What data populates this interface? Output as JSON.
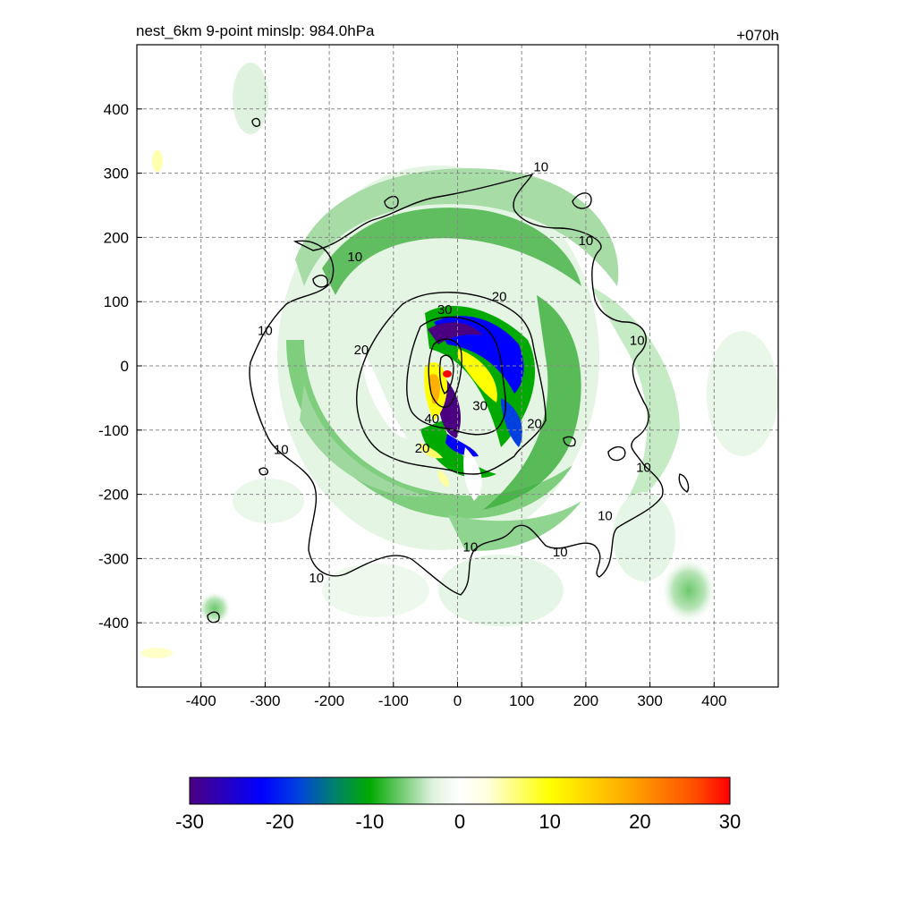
{
  "chart_data": {
    "type": "heatmap",
    "title": "nest_6km  9-point minslp: 984.0hPa",
    "time_label": "+070h",
    "xlim": [
      -500,
      500
    ],
    "ylim": [
      -500,
      500
    ],
    "grid": true,
    "x_ticks": [
      -400,
      -300,
      -200,
      -100,
      0,
      100,
      200,
      300,
      400
    ],
    "x_tick_labels": [
      "-400",
      "-300",
      "-200",
      "-100",
      "0",
      "100",
      "200",
      "300",
      "400"
    ],
    "y_ticks": [
      400,
      300,
      200,
      100,
      0,
      -100,
      -200,
      -300,
      -400
    ],
    "y_tick_labels": [
      "400",
      "300",
      "200",
      "100",
      "0",
      "-100",
      "-200",
      "-300",
      "-400"
    ],
    "colorbar": {
      "range": [
        -30,
        30
      ],
      "ticks": [
        -30,
        -20,
        -10,
        0,
        10,
        20,
        30
      ],
      "tick_labels": [
        "-30",
        "-20",
        "-10",
        "0",
        "10",
        "20",
        "30"
      ],
      "stops": [
        {
          "v": -30,
          "c": "#4b0082"
        },
        {
          "v": -22,
          "c": "#0000ff"
        },
        {
          "v": -18,
          "c": "#0040e0"
        },
        {
          "v": -14,
          "c": "#00806e"
        },
        {
          "v": -10,
          "c": "#00aa00"
        },
        {
          "v": -6,
          "c": "#7fd07f"
        },
        {
          "v": -3,
          "c": "#dff2df"
        },
        {
          "v": 0,
          "c": "#ffffff"
        },
        {
          "v": 3,
          "c": "#ffffe0"
        },
        {
          "v": 10,
          "c": "#ffff00"
        },
        {
          "v": 18,
          "c": "#ffb000"
        },
        {
          "v": 26,
          "c": "#ff5000"
        },
        {
          "v": 30,
          "c": "#ff0000"
        }
      ]
    },
    "contours": [
      {
        "level": 10,
        "label": "10"
      },
      {
        "level": 20,
        "label": "20"
      },
      {
        "level": 30,
        "label": "30"
      },
      {
        "level": 40,
        "label": "40"
      }
    ],
    "contour_labels": [
      {
        "text": "10",
        "x": 130,
        "y": 310
      },
      {
        "text": "10",
        "x": -160,
        "y": 170
      },
      {
        "text": "10",
        "x": 200,
        "y": 195
      },
      {
        "text": "10",
        "x": -300,
        "y": 55
      },
      {
        "text": "10",
        "x": 280,
        "y": 40
      },
      {
        "text": "10",
        "x": -275,
        "y": -130
      },
      {
        "text": "10",
        "x": 290,
        "y": -158
      },
      {
        "text": "10",
        "x": 230,
        "y": -233
      },
      {
        "text": "10",
        "x": 20,
        "y": -282
      },
      {
        "text": "10",
        "x": 160,
        "y": -290
      },
      {
        "text": "10",
        "x": -220,
        "y": -330
      },
      {
        "text": "20",
        "x": 65,
        "y": 108
      },
      {
        "text": "20",
        "x": -150,
        "y": 25
      },
      {
        "text": "20",
        "x": 120,
        "y": -90
      },
      {
        "text": "20",
        "x": -55,
        "y": -128
      },
      {
        "text": "30",
        "x": -20,
        "y": 88
      },
      {
        "text": "30",
        "x": 35,
        "y": -62
      },
      {
        "text": "40",
        "x": -40,
        "y": -82
      }
    ]
  }
}
